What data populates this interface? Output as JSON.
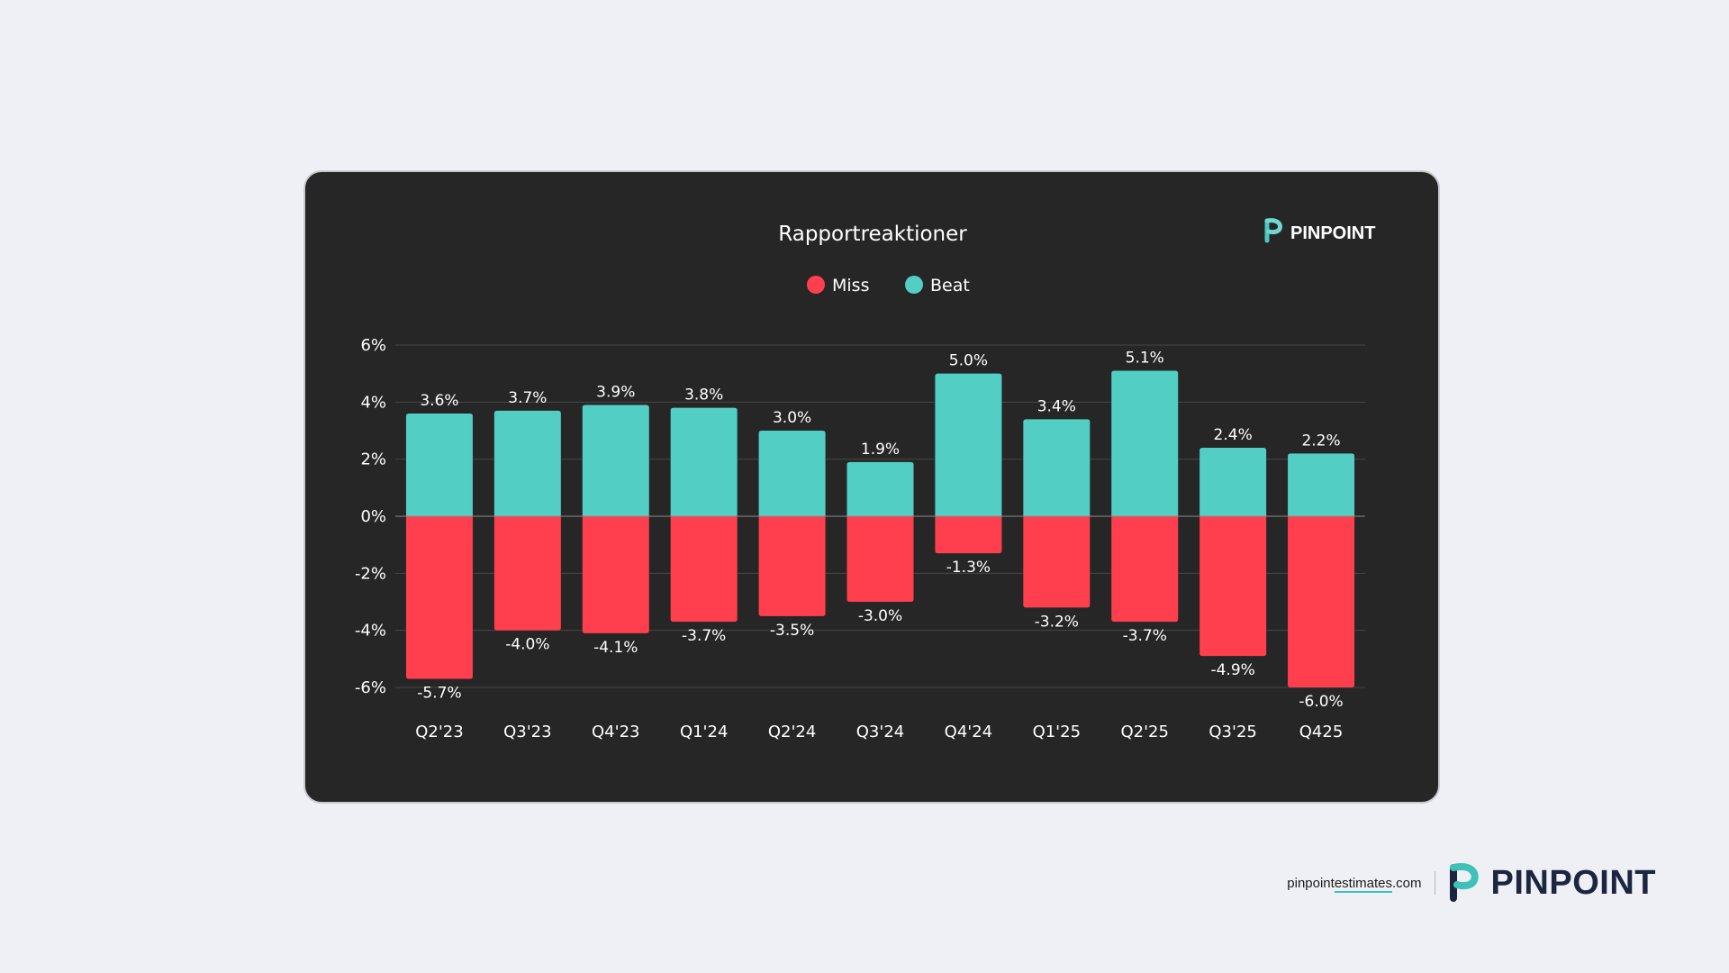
{
  "card_logo": {
    "text": "PINPOINT"
  },
  "footer": {
    "url_prefix": "pinpoint",
    "url_underlined": "estimates",
    "url_suffix": ".com",
    "brand": "PINPOINT"
  },
  "colors": {
    "miss": "#ff3f4e",
    "beat": "#52cec5",
    "card_bg": "#262626",
    "page_bg": "#eff0f5",
    "brand_navy": "#1c2640"
  },
  "chart_data": {
    "type": "bar",
    "stacked": true,
    "title": "Rapportreaktioner",
    "legend": [
      "Miss",
      "Beat"
    ],
    "legend_position": "top-center",
    "categories": [
      "Q2'23",
      "Q3'23",
      "Q4'23",
      "Q1'24",
      "Q2'24",
      "Q3'24",
      "Q4'24",
      "Q1'25",
      "Q2'25",
      "Q3'25",
      "Q425"
    ],
    "series": [
      {
        "name": "Beat",
        "values": [
          3.6,
          3.7,
          3.9,
          3.8,
          3.0,
          1.9,
          5.0,
          3.4,
          5.1,
          2.4,
          2.2
        ],
        "labels": [
          "3.6%",
          "3.7%",
          "3.9%",
          "3.8%",
          "3.0%",
          "1.9%",
          "5.0%",
          "3.4%",
          "5.1%",
          "2.4%",
          "2.2%"
        ]
      },
      {
        "name": "Miss",
        "values": [
          -5.7,
          -4.0,
          -4.1,
          -3.7,
          -3.5,
          -3.0,
          -1.3,
          -3.2,
          -3.7,
          -4.9,
          -6.0
        ],
        "labels": [
          "-5.7%",
          "-4.0%",
          "-4.1%",
          "-3.7%",
          "-3.5%",
          "-3.0%",
          "-1.3%",
          "-3.2%",
          "-3.7%",
          "-4.9%",
          "-6.0%"
        ]
      }
    ],
    "y_ticks": [
      "6%",
      "4%",
      "2%",
      "0%",
      "-2%",
      "-4%",
      "-6%"
    ],
    "ylim": [
      -6,
      6
    ],
    "xlabel": "",
    "ylabel": "",
    "grid": true
  }
}
